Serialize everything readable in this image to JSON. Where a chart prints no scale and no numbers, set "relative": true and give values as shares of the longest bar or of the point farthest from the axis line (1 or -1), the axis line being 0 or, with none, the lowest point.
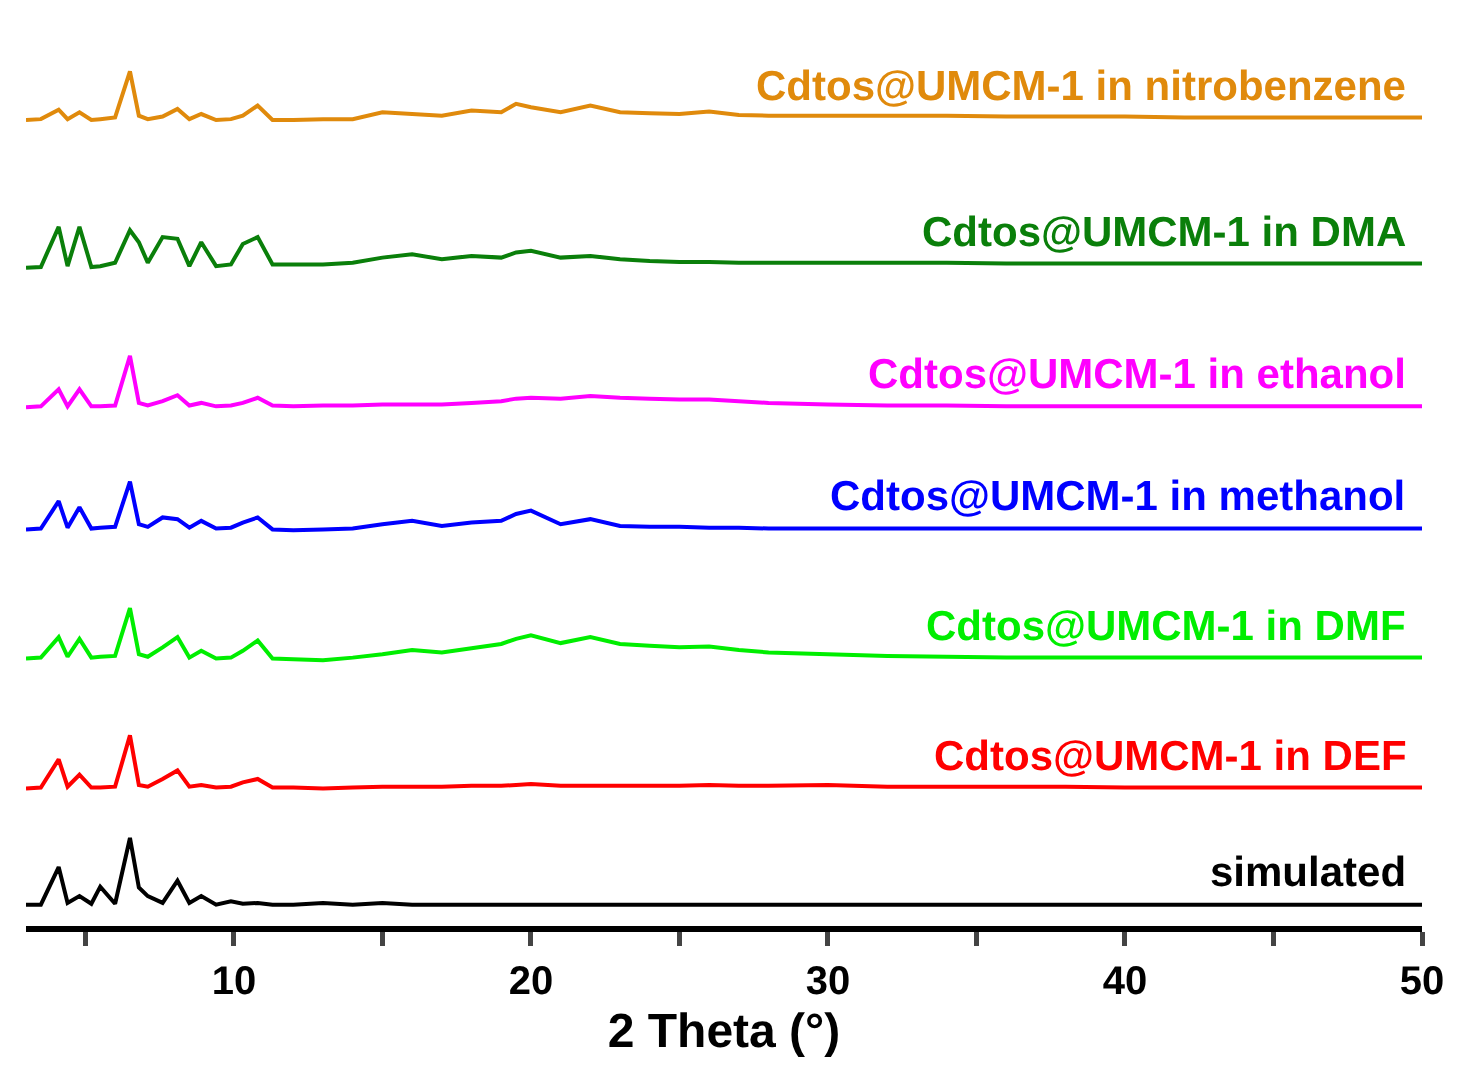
{
  "chart_data": {
    "type": "line",
    "relative": true,
    "xlabel": "2 Theta (°)",
    "xlim": [
      3,
      50
    ],
    "xticks": [
      {
        "value": 5,
        "label": null
      },
      10,
      {
        "value": 15,
        "label": null
      },
      20,
      {
        "value": 25,
        "label": null
      },
      30,
      {
        "value": 35,
        "label": null
      },
      40,
      {
        "value": 45,
        "label": null
      },
      50
    ],
    "grid": false,
    "legend": false,
    "line_style": "solid",
    "marker": "none",
    "x": [
      3,
      3.5,
      4.1,
      4.4,
      4.8,
      5.2,
      5.5,
      6.0,
      6.5,
      6.8,
      7.1,
      7.6,
      8.1,
      8.5,
      8.9,
      9.4,
      9.9,
      10.3,
      10.8,
      11.3,
      12,
      13,
      14,
      15,
      16,
      17,
      18,
      19,
      19.5,
      20,
      21,
      22,
      23,
      24,
      25,
      26,
      27,
      28,
      30,
      32,
      34,
      36,
      38,
      40,
      42,
      44,
      46,
      48,
      50
    ],
    "series": [
      {
        "name": "Cdtos@UMCM-1 in nitrobenzene",
        "color": "#e08a0c",
        "values": [
          0.943,
          0.944,
          0.955,
          0.944,
          0.952,
          0.943,
          0.944,
          0.946,
          1.0,
          0.948,
          0.944,
          0.947,
          0.956,
          0.944,
          0.95,
          0.943,
          0.944,
          0.948,
          0.96,
          0.943,
          0.943,
          0.944,
          0.944,
          0.952,
          0.95,
          0.948,
          0.954,
          0.952,
          0.962,
          0.958,
          0.952,
          0.96,
          0.952,
          0.951,
          0.95,
          0.953,
          0.949,
          0.948,
          0.948,
          0.948,
          0.948,
          0.947,
          0.947,
          0.947,
          0.946,
          0.946,
          0.946,
          0.946,
          0.946
        ]
      },
      {
        "name": "Cdtos@UMCM-1 in DMA",
        "color": "#0a7f0a",
        "values": [
          0.77,
          0.771,
          0.818,
          0.772,
          0.818,
          0.771,
          0.772,
          0.776,
          0.814,
          0.8,
          0.776,
          0.806,
          0.804,
          0.772,
          0.8,
          0.772,
          0.774,
          0.798,
          0.806,
          0.774,
          0.774,
          0.774,
          0.776,
          0.782,
          0.786,
          0.78,
          0.784,
          0.782,
          0.788,
          0.79,
          0.782,
          0.784,
          0.78,
          0.778,
          0.777,
          0.777,
          0.776,
          0.776,
          0.776,
          0.776,
          0.776,
          0.775,
          0.775,
          0.775,
          0.775,
          0.775,
          0.775,
          0.775,
          0.775
        ]
      },
      {
        "name": "Cdtos@UMCM-1 in ethanol",
        "color": "#ff00ff",
        "values": [
          0.607,
          0.608,
          0.628,
          0.608,
          0.628,
          0.608,
          0.608,
          0.609,
          0.667,
          0.612,
          0.609,
          0.614,
          0.621,
          0.609,
          0.612,
          0.608,
          0.609,
          0.612,
          0.618,
          0.609,
          0.608,
          0.609,
          0.609,
          0.61,
          0.61,
          0.61,
          0.612,
          0.614,
          0.617,
          0.618,
          0.617,
          0.62,
          0.618,
          0.617,
          0.616,
          0.616,
          0.614,
          0.612,
          0.61,
          0.609,
          0.609,
          0.608,
          0.608,
          0.608,
          0.608,
          0.608,
          0.608,
          0.608,
          0.608
        ]
      },
      {
        "name": "Cdtos@UMCM-1 in methanol",
        "color": "#0000ff",
        "values": [
          0.464,
          0.465,
          0.497,
          0.466,
          0.49,
          0.465,
          0.466,
          0.467,
          0.52,
          0.47,
          0.467,
          0.478,
          0.476,
          0.466,
          0.474,
          0.465,
          0.466,
          0.472,
          0.478,
          0.464,
          0.463,
          0.464,
          0.465,
          0.47,
          0.474,
          0.468,
          0.472,
          0.474,
          0.482,
          0.486,
          0.47,
          0.476,
          0.468,
          0.467,
          0.467,
          0.466,
          0.466,
          0.465,
          0.465,
          0.465,
          0.465,
          0.465,
          0.465,
          0.465,
          0.465,
          0.465,
          0.465,
          0.465,
          0.465
        ]
      },
      {
        "name": "Cdtos@UMCM-1 in DMF",
        "color": "#00ee00",
        "values": [
          0.313,
          0.314,
          0.338,
          0.315,
          0.336,
          0.314,
          0.315,
          0.316,
          0.372,
          0.318,
          0.315,
          0.326,
          0.338,
          0.314,
          0.322,
          0.313,
          0.314,
          0.322,
          0.334,
          0.313,
          0.312,
          0.311,
          0.314,
          0.318,
          0.323,
          0.32,
          0.325,
          0.33,
          0.336,
          0.34,
          0.331,
          0.338,
          0.33,
          0.328,
          0.326,
          0.327,
          0.323,
          0.32,
          0.318,
          0.316,
          0.315,
          0.314,
          0.314,
          0.314,
          0.314,
          0.314,
          0.314,
          0.314,
          0.314
        ]
      },
      {
        "name": "Cdtos@UMCM-1 in DEF",
        "color": "#ff0000",
        "values": [
          0.161,
          0.162,
          0.195,
          0.163,
          0.177,
          0.162,
          0.162,
          0.163,
          0.223,
          0.165,
          0.163,
          0.172,
          0.182,
          0.163,
          0.165,
          0.162,
          0.163,
          0.168,
          0.172,
          0.162,
          0.162,
          0.161,
          0.162,
          0.163,
          0.163,
          0.163,
          0.164,
          0.164,
          0.165,
          0.166,
          0.164,
          0.164,
          0.164,
          0.164,
          0.164,
          0.165,
          0.164,
          0.164,
          0.165,
          0.163,
          0.163,
          0.163,
          0.163,
          0.162,
          0.162,
          0.162,
          0.162,
          0.162,
          0.162
        ]
      },
      {
        "name": "simulated",
        "color": "#000000",
        "values": [
          0.025,
          0.025,
          0.069,
          0.027,
          0.035,
          0.026,
          0.046,
          0.026,
          0.103,
          0.045,
          0.035,
          0.027,
          0.053,
          0.027,
          0.035,
          0.025,
          0.029,
          0.026,
          0.027,
          0.025,
          0.025,
          0.027,
          0.025,
          0.027,
          0.025,
          0.025,
          0.025,
          0.025,
          0.025,
          0.025,
          0.025,
          0.025,
          0.025,
          0.025,
          0.025,
          0.025,
          0.025,
          0.025,
          0.025,
          0.025,
          0.025,
          0.025,
          0.025,
          0.025,
          0.025,
          0.025,
          0.025,
          0.025,
          0.025
        ]
      }
    ]
  }
}
